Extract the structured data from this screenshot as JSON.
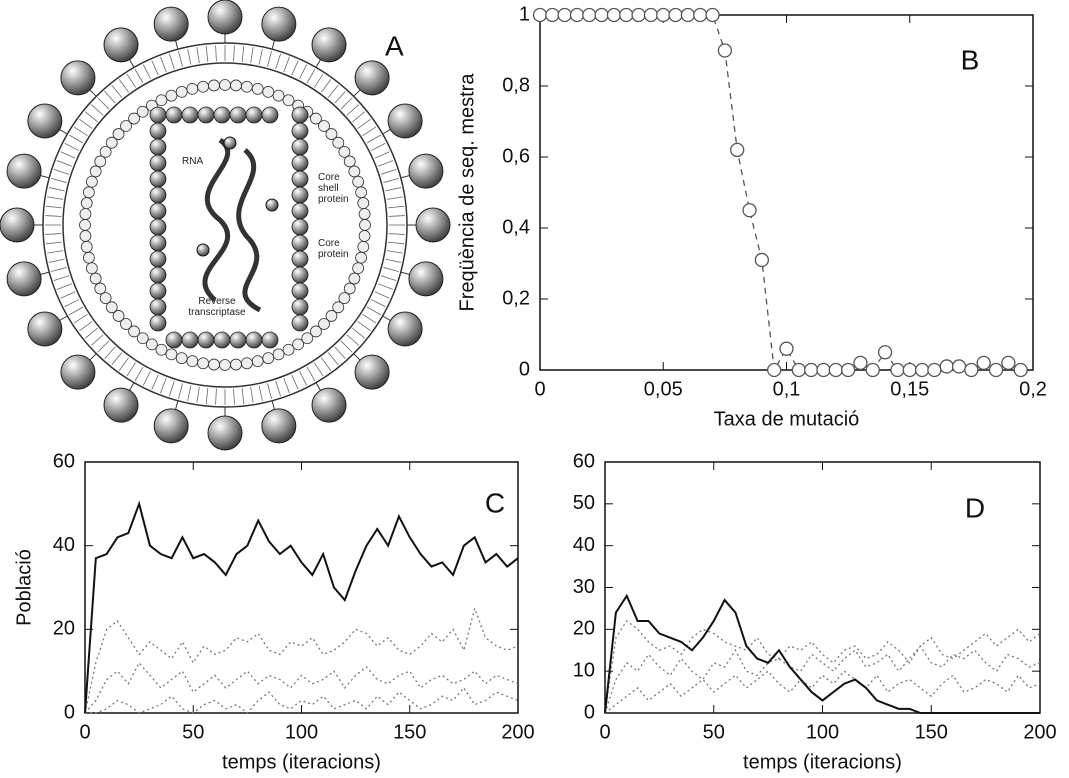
{
  "diagram": {
    "label": "A",
    "annotations": [
      "RNA",
      "Core shell protein",
      "Core protein",
      "Reverse transcriptase"
    ]
  },
  "chart_data": [
    {
      "type": "line",
      "annotation": "B",
      "xlabel": "Taxa de mutació",
      "ylabel": "Freqüència de seq. mestra",
      "x": [
        0,
        0.005,
        0.01,
        0.015,
        0.02,
        0.025,
        0.03,
        0.035,
        0.04,
        0.045,
        0.05,
        0.055,
        0.06,
        0.065,
        0.07,
        0.075,
        0.08,
        0.085,
        0.09,
        0.095,
        0.1,
        0.105,
        0.11,
        0.115,
        0.12,
        0.125,
        0.13,
        0.135,
        0.14,
        0.145,
        0.15,
        0.155,
        0.16,
        0.165,
        0.17,
        0.175,
        0.18,
        0.185,
        0.19,
        0.195
      ],
      "series": [
        {
          "color": "#555555",
          "linestyle": "dashed",
          "marker": "circle",
          "values": [
            1,
            1,
            1,
            1,
            1,
            1,
            1,
            1,
            1,
            1,
            1,
            1,
            1,
            1,
            1,
            0.9,
            0.62,
            0.45,
            0.31,
            0,
            0.06,
            0,
            0,
            0,
            0,
            0,
            0.02,
            0,
            0.05,
            0,
            0,
            0,
            0,
            0.01,
            0.01,
            0,
            0.02,
            0,
            0.02,
            0
          ]
        }
      ],
      "xlim": [
        0,
        0.2
      ],
      "ylim": [
        0,
        1
      ],
      "xticks": [
        0,
        {
          "value": 0.05,
          "label": "0,05"
        },
        {
          "value": 0.1,
          "label": "0,1"
        },
        {
          "value": 0.15,
          "label": "0,15"
        },
        {
          "value": 0.2,
          "label": "0,2"
        }
      ],
      "yticks": [
        0,
        {
          "value": 0.2,
          "label": "0,2"
        },
        {
          "value": 0.4,
          "label": "0,4"
        },
        {
          "value": 0.6,
          "label": "0,6"
        },
        {
          "value": 0.8,
          "label": "0,8"
        },
        1
      ]
    },
    {
      "type": "line",
      "annotation": "C",
      "xlabel": "temps (iteracions)",
      "ylabel": "Població",
      "x": [
        0,
        5,
        10,
        15,
        20,
        25,
        30,
        35,
        40,
        45,
        50,
        55,
        60,
        65,
        70,
        75,
        80,
        85,
        90,
        95,
        100,
        105,
        110,
        115,
        120,
        125,
        130,
        135,
        140,
        145,
        150,
        155,
        160,
        165,
        170,
        175,
        180,
        185,
        190,
        195,
        200
      ],
      "series": [
        {
          "color": "#111111",
          "linestyle": "solid",
          "values": [
            0,
            37,
            38,
            42,
            43,
            50,
            40,
            38,
            37,
            42,
            37,
            38,
            36,
            33,
            38,
            40,
            46,
            41,
            38,
            40,
            36,
            33,
            38,
            30,
            27,
            34,
            40,
            44,
            40,
            47,
            42,
            38,
            35,
            36,
            33,
            40,
            42,
            36,
            38,
            35,
            37
          ]
        },
        {
          "color": "#777777",
          "linestyle": "dotted",
          "values": [
            0,
            12,
            20,
            22,
            18,
            14,
            17,
            15,
            13,
            17,
            12,
            16,
            14,
            15,
            18,
            17,
            19,
            15,
            14,
            17,
            16,
            18,
            14,
            15,
            17,
            20,
            19,
            16,
            18,
            15,
            14,
            16,
            19,
            17,
            20,
            15,
            25,
            18,
            16,
            15,
            16
          ]
        },
        {
          "color": "#777777",
          "linestyle": "dotted",
          "values": [
            0,
            3,
            8,
            10,
            7,
            12,
            9,
            6,
            8,
            10,
            5,
            7,
            9,
            6,
            8,
            10,
            7,
            9,
            8,
            6,
            9,
            7,
            8,
            10,
            6,
            9,
            11,
            8,
            7,
            9,
            10,
            6,
            8,
            9,
            7,
            8,
            10,
            7,
            9,
            8,
            7
          ]
        },
        {
          "color": "#777777",
          "linestyle": "dotted",
          "values": [
            0,
            0,
            1,
            3,
            2,
            0,
            1,
            2,
            4,
            1,
            0,
            2,
            3,
            1,
            2,
            0,
            3,
            5,
            2,
            1,
            3,
            2,
            4,
            1,
            2,
            3,
            1,
            4,
            2,
            5,
            3,
            1,
            2,
            4,
            3,
            6,
            2,
            3,
            5,
            4,
            3
          ]
        }
      ],
      "xlim": [
        0,
        200
      ],
      "ylim": [
        0,
        60
      ],
      "xticks": [
        0,
        50,
        100,
        150,
        200
      ],
      "yticks": [
        0,
        20,
        40,
        60
      ]
    },
    {
      "type": "line",
      "annotation": "D",
      "xlabel": "temps (iteracions)",
      "x": [
        0,
        5,
        10,
        15,
        20,
        25,
        30,
        35,
        40,
        45,
        50,
        55,
        60,
        65,
        70,
        75,
        80,
        85,
        90,
        95,
        100,
        105,
        110,
        115,
        120,
        125,
        130,
        135,
        140,
        145,
        150,
        155,
        160,
        165,
        170,
        175,
        180,
        185,
        190,
        195,
        200
      ],
      "series": [
        {
          "color": "#111111",
          "linestyle": "solid",
          "values": [
            0,
            24,
            28,
            22,
            22,
            19,
            18,
            17,
            15,
            18,
            22,
            27,
            24,
            16,
            13,
            12,
            15,
            11,
            8,
            5,
            3,
            5,
            7,
            8,
            6,
            3,
            2,
            1,
            1,
            0,
            0,
            0,
            0,
            0,
            0,
            0,
            0,
            0,
            0,
            0,
            0
          ]
        },
        {
          "color": "#777777",
          "linestyle": "dotted",
          "values": [
            0,
            18,
            22,
            20,
            17,
            15,
            16,
            14,
            18,
            20,
            19,
            17,
            16,
            15,
            18,
            14,
            13,
            16,
            15,
            17,
            14,
            12,
            15,
            16,
            13,
            14,
            17,
            15,
            12,
            16,
            18,
            14,
            13,
            15,
            17,
            19,
            16,
            18,
            20,
            17,
            19
          ]
        },
        {
          "color": "#777777",
          "linestyle": "dotted",
          "values": [
            0,
            8,
            12,
            10,
            14,
            11,
            9,
            13,
            10,
            8,
            12,
            11,
            15,
            10,
            9,
            12,
            13,
            11,
            10,
            14,
            12,
            10,
            13,
            15,
            11,
            12,
            14,
            10,
            13,
            16,
            12,
            11,
            14,
            13,
            15,
            12,
            10,
            14,
            13,
            11,
            12
          ]
        },
        {
          "color": "#777777",
          "linestyle": "dotted",
          "values": [
            0,
            2,
            4,
            6,
            3,
            5,
            7,
            4,
            6,
            8,
            5,
            7,
            9,
            6,
            8,
            10,
            7,
            5,
            8,
            6,
            9,
            7,
            10,
            8,
            6,
            9,
            5,
            7,
            8,
            6,
            4,
            7,
            9,
            5,
            6,
            8,
            7,
            5,
            9,
            6,
            7
          ]
        }
      ],
      "xlim": [
        0,
        200
      ],
      "ylim": [
        0,
        60
      ],
      "xticks": [
        0,
        50,
        100,
        150,
        200
      ],
      "yticks": [
        0,
        10,
        20,
        30,
        40,
        50,
        60
      ]
    }
  ]
}
